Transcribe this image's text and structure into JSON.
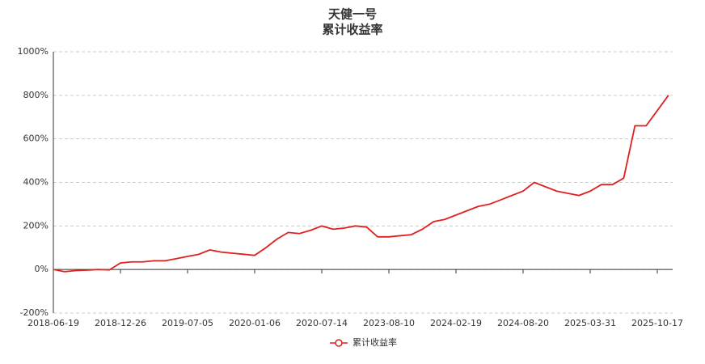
{
  "chart_data": {
    "type": "line",
    "title": "天健一号",
    "subtitle": "累计收益率",
    "categories": [
      "2018-06-19",
      null,
      null,
      null,
      null,
      null,
      "2018-12-26",
      null,
      null,
      null,
      null,
      null,
      "2019-07-05",
      null,
      null,
      null,
      null,
      null,
      "2020-01-06",
      null,
      null,
      null,
      null,
      null,
      "2020-07-14",
      null,
      null,
      null,
      null,
      null,
      "2023-08-10",
      null,
      null,
      null,
      null,
      null,
      "2024-02-19",
      null,
      null,
      null,
      null,
      null,
      "2024-08-20",
      null,
      null,
      null,
      null,
      null,
      "2025-03-31",
      null,
      null,
      null,
      null,
      null,
      "2025-10-17",
      null
    ],
    "series": [
      {
        "name": "累计收益率",
        "color": "#e0201f",
        "values": [
          0,
          -10,
          -5,
          -3,
          0,
          -2,
          30,
          35,
          35,
          40,
          40,
          50,
          60,
          70,
          90,
          80,
          75,
          70,
          65,
          100,
          140,
          170,
          165,
          180,
          200,
          185,
          190,
          200,
          195,
          150,
          150,
          155,
          160,
          185,
          220,
          230,
          250,
          270,
          290,
          300,
          320,
          340,
          360,
          400,
          380,
          360,
          350,
          340,
          360,
          390,
          390,
          420,
          660,
          660,
          730,
          800
        ]
      }
    ],
    "ylim": [
      -200,
      1000
    ],
    "yticks": [
      {
        "value": -200,
        "label": "-200%"
      },
      {
        "value": 0,
        "label": "0%"
      },
      {
        "value": 200,
        "label": "200%"
      },
      {
        "value": 400,
        "label": "400%"
      },
      {
        "value": 600,
        "label": "600%"
      },
      {
        "value": 800,
        "label": "800%"
      },
      {
        "value": 1000,
        "label": "1000%"
      }
    ],
    "grid": true
  }
}
